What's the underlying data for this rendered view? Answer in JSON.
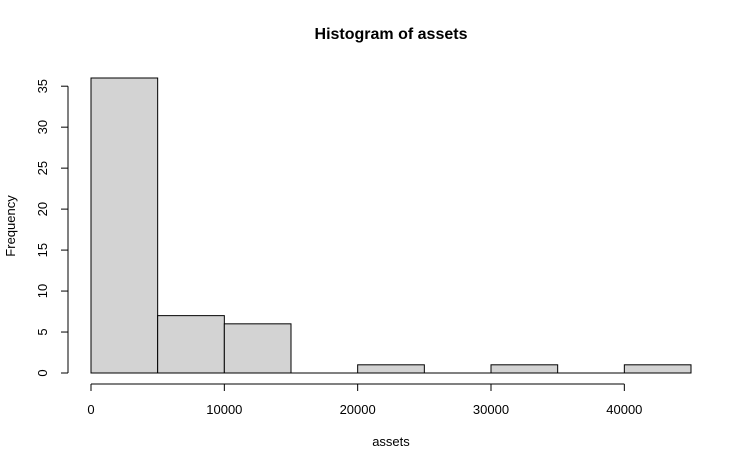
{
  "chart_data": {
    "type": "bar",
    "title": "Histogram of assets",
    "xlabel": "assets",
    "ylabel": "Frequency",
    "bins": [
      {
        "start": 0,
        "end": 5000,
        "count": 36
      },
      {
        "start": 5000,
        "end": 10000,
        "count": 7
      },
      {
        "start": 10000,
        "end": 15000,
        "count": 6
      },
      {
        "start": 15000,
        "end": 20000,
        "count": 0
      },
      {
        "start": 20000,
        "end": 25000,
        "count": 1
      },
      {
        "start": 25000,
        "end": 30000,
        "count": 0
      },
      {
        "start": 30000,
        "end": 35000,
        "count": 1
      },
      {
        "start": 35000,
        "end": 40000,
        "count": 0
      },
      {
        "start": 40000,
        "end": 45000,
        "count": 1
      }
    ],
    "xlim": [
      0,
      45000
    ],
    "ylim": [
      0,
      36
    ],
    "x_ticks": [
      0,
      10000,
      20000,
      30000,
      40000
    ],
    "x_tick_labels": [
      "0",
      "10000",
      "20000",
      "30000",
      "40000"
    ],
    "y_ticks": [
      0,
      5,
      10,
      15,
      20,
      25,
      30,
      35
    ],
    "y_tick_labels": [
      "0",
      "5",
      "10",
      "15",
      "20",
      "25",
      "30",
      "35"
    ],
    "grid": false,
    "legend": "none",
    "bar_fill": "#d3d3d3",
    "bar_stroke": "#000000"
  }
}
